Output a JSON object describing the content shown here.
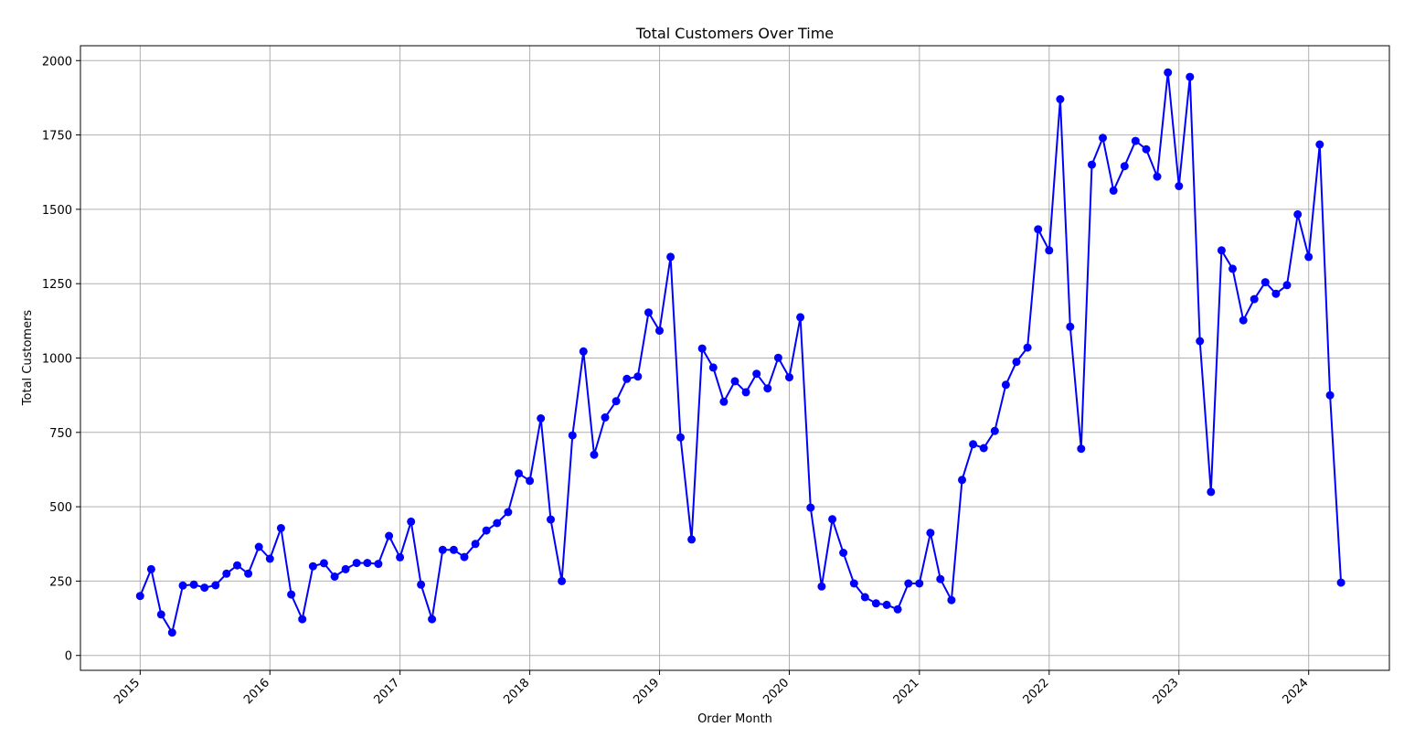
{
  "chart_data": {
    "type": "line",
    "title": "Total Customers Over Time",
    "xlabel": "Order Month",
    "ylabel": "Total Customers",
    "x_ticks": [
      "2015",
      "2016",
      "2017",
      "2018",
      "2019",
      "2020",
      "2021",
      "2022",
      "2023",
      "2024"
    ],
    "y_ticks": [
      "0",
      "250",
      "500",
      "750",
      "1000",
      "1250",
      "1500",
      "1750",
      "2000"
    ],
    "ylim": [
      -50,
      2050
    ],
    "xlim": [
      "2014-07-17",
      "2024-08-15"
    ],
    "grid": true,
    "marker": "circle",
    "color": "#0000ff",
    "series": [
      {
        "x": [
          "2015-01",
          "2015-02",
          "2015-03",
          "2015-04",
          "2015-05",
          "2015-06",
          "2015-07",
          "2015-08",
          "2015-09",
          "2015-10",
          "2015-11",
          "2015-12",
          "2016-01",
          "2016-02",
          "2016-03",
          "2016-04",
          "2016-05",
          "2016-06",
          "2016-07",
          "2016-08",
          "2016-09",
          "2016-10",
          "2016-11",
          "2016-12",
          "2017-01",
          "2017-02",
          "2017-03",
          "2017-04",
          "2017-05",
          "2017-06",
          "2017-07",
          "2017-08",
          "2017-09",
          "2017-10",
          "2017-11",
          "2017-12",
          "2018-01",
          "2018-02",
          "2018-03",
          "2018-04",
          "2018-05",
          "2018-06",
          "2018-07",
          "2018-08",
          "2018-09",
          "2018-10",
          "2018-11",
          "2018-12",
          "2019-01",
          "2019-02",
          "2019-03",
          "2019-04",
          "2019-05",
          "2019-06",
          "2019-07",
          "2019-08",
          "2019-09",
          "2019-10",
          "2019-11",
          "2019-12",
          "2020-01",
          "2020-02",
          "2020-03",
          "2020-04",
          "2020-05",
          "2020-06",
          "2020-07",
          "2020-08",
          "2020-09",
          "2020-10",
          "2020-11",
          "2020-12",
          "2021-01",
          "2021-02",
          "2021-03",
          "2021-04",
          "2021-05",
          "2021-06",
          "2021-07",
          "2021-08",
          "2021-09",
          "2021-10",
          "2021-11",
          "2021-12",
          "2022-01",
          "2022-02",
          "2022-03",
          "2022-04",
          "2022-05",
          "2022-06",
          "2022-07",
          "2022-08",
          "2022-09",
          "2022-10",
          "2022-11",
          "2022-12",
          "2023-01",
          "2023-02",
          "2023-03",
          "2023-04",
          "2023-05",
          "2023-06",
          "2023-07",
          "2023-08",
          "2023-09",
          "2023-10",
          "2023-11",
          "2023-12",
          "2024-01",
          "2024-02",
          "2024-03",
          "2024-04"
        ],
        "values": [
          200,
          290,
          138,
          77,
          235,
          238,
          228,
          236,
          275,
          303,
          275,
          365,
          325,
          428,
          205,
          122,
          300,
          310,
          265,
          290,
          311,
          311,
          308,
          402,
          330,
          450,
          238,
          122,
          355,
          355,
          331,
          375,
          420,
          445,
          482,
          612,
          587,
          797,
          457,
          250,
          740,
          1022,
          675,
          800,
          855,
          930,
          938,
          1153,
          1092,
          1340,
          733,
          390,
          1032,
          968,
          853,
          922,
          885,
          947,
          898,
          1001,
          935,
          1137,
          497,
          232,
          458,
          345,
          242,
          196,
          175,
          170,
          155,
          242,
          242,
          412,
          257,
          186,
          590,
          710,
          697,
          755,
          910,
          987,
          1035,
          1433,
          1362,
          1870,
          1105,
          695,
          1650,
          1740,
          1563,
          1645,
          1730,
          1702,
          1610,
          1960,
          1578,
          1945,
          1057,
          550,
          1362,
          1300,
          1127,
          1198,
          1255,
          1216,
          1245,
          1483,
          1340,
          1718,
          875,
          245
        ]
      }
    ]
  }
}
